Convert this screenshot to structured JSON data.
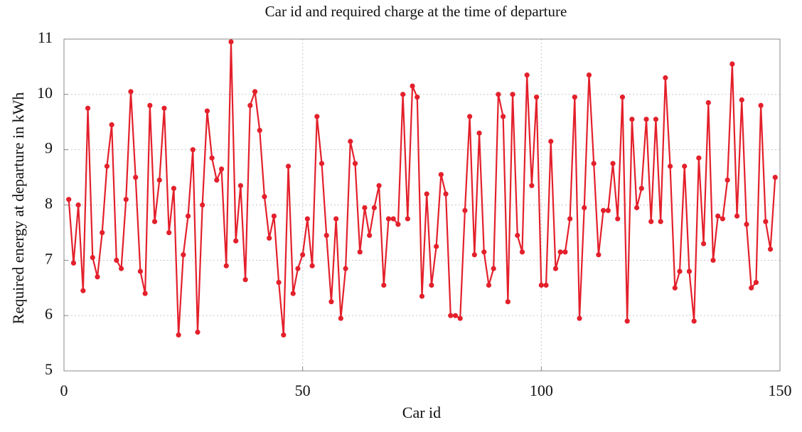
{
  "chart_data": {
    "type": "line",
    "title": "Car id and required charge at the time of departure",
    "x_label": "Car id",
    "y_label": "Required energy at departure in kWh",
    "x": [
      1,
      2,
      3,
      4,
      5,
      6,
      7,
      8,
      9,
      10,
      11,
      12,
      13,
      14,
      15,
      16,
      17,
      18,
      19,
      20,
      21,
      22,
      23,
      24,
      25,
      26,
      27,
      28,
      29,
      30,
      31,
      32,
      33,
      34,
      35,
      36,
      37,
      38,
      39,
      40,
      41,
      42,
      43,
      44,
      45,
      46,
      47,
      48,
      49,
      50,
      51,
      52,
      53,
      54,
      55,
      56,
      57,
      58,
      59,
      60,
      61,
      62,
      63,
      64,
      65,
      66,
      67,
      68,
      69,
      70,
      71,
      72,
      73,
      74,
      75,
      76,
      77,
      78,
      79,
      80,
      81,
      82,
      83,
      84,
      85,
      86,
      87,
      88,
      89,
      90,
      91,
      92,
      93,
      94,
      95,
      96,
      97,
      98,
      99,
      100,
      101,
      102,
      103,
      104,
      105,
      106,
      107,
      108,
      109,
      110,
      111,
      112,
      113,
      114,
      115,
      116,
      117,
      118,
      119,
      120,
      121,
      122,
      123,
      124,
      125,
      126,
      127,
      128,
      129,
      130,
      131,
      132,
      133,
      134,
      135,
      136,
      137,
      138,
      139,
      140,
      141,
      142,
      143,
      144,
      145,
      146,
      147,
      148,
      149
    ],
    "series": [
      {
        "color": "#e3202b",
        "values": [
          8.1,
          6.95,
          8.0,
          6.45,
          9.75,
          7.05,
          6.7,
          7.5,
          8.7,
          9.45,
          7.0,
          6.85,
          8.1,
          10.05,
          8.5,
          6.8,
          6.4,
          9.8,
          7.7,
          8.45,
          9.75,
          7.5,
          8.3,
          5.65,
          7.1,
          7.8,
          9.0,
          5.7,
          8.0,
          9.7,
          8.85,
          8.45,
          8.65,
          6.9,
          10.95,
          7.35,
          8.35,
          6.65,
          9.8,
          10.05,
          9.35,
          8.15,
          7.4,
          7.8,
          6.6,
          5.65,
          8.7,
          6.4,
          6.85,
          7.1,
          7.75,
          6.9,
          9.6,
          8.75,
          7.45,
          6.25,
          7.75,
          5.95,
          6.85,
          9.15,
          8.75,
          7.15,
          7.95,
          7.45,
          7.95,
          8.35,
          6.55,
          7.75,
          7.75,
          7.65,
          10.0,
          7.75,
          10.15,
          9.95,
          6.35,
          8.2,
          6.55,
          7.25,
          8.55,
          8.2,
          6.0,
          6.0,
          5.95,
          7.9,
          9.6,
          7.1,
          9.3,
          7.15,
          6.55,
          6.85,
          10.0,
          9.6,
          6.25,
          10.0,
          7.45,
          7.15,
          10.35,
          8.35,
          9.95,
          6.55,
          6.55,
          9.15,
          6.85,
          7.15,
          7.15,
          7.75,
          9.95,
          5.95,
          7.95,
          10.35,
          8.75,
          7.1,
          7.9,
          7.9,
          8.75,
          7.75,
          9.95,
          5.9,
          9.55,
          7.95,
          8.3,
          9.55,
          7.7,
          9.55,
          7.7,
          10.3,
          8.7,
          6.5,
          6.8,
          8.7,
          6.8,
          5.9,
          8.85,
          7.3,
          9.85,
          7.0,
          7.8,
          7.75,
          8.45,
          10.55,
          7.8,
          9.9,
          7.65,
          6.5,
          6.6,
          9.8,
          7.7,
          7.2,
          8.5
        ]
      }
    ],
    "xlim": [
      0,
      150
    ],
    "xticks": [
      0,
      50,
      100,
      150
    ],
    "ylim": [
      5,
      11
    ],
    "yticks": [
      5,
      6,
      7,
      8,
      9,
      10,
      11
    ],
    "grid": true
  }
}
